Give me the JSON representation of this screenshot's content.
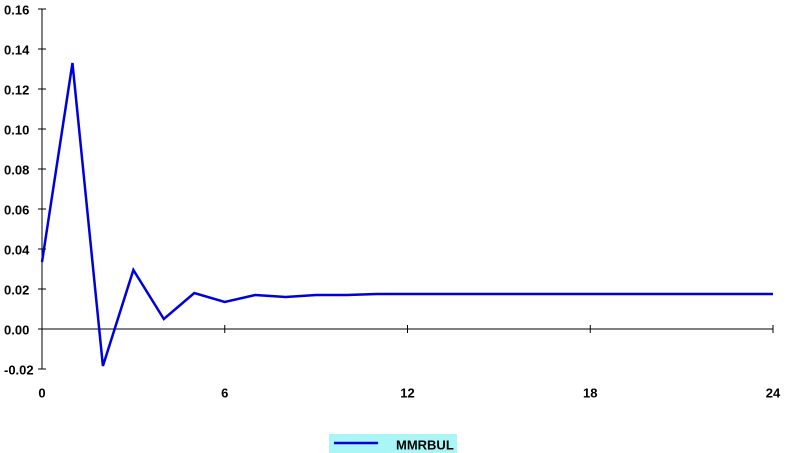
{
  "chart_data": {
    "type": "line",
    "x": [
      0,
      1,
      2,
      3,
      4,
      5,
      6,
      7,
      8,
      9,
      10,
      11,
      12,
      13,
      14,
      15,
      16,
      17,
      18,
      19,
      20,
      21,
      22,
      23,
      24
    ],
    "series": [
      {
        "name": "MMRBUL",
        "color": "#0000dd",
        "values": [
          0.0335,
          0.133,
          -0.0185,
          0.0295,
          0.005,
          0.018,
          0.0135,
          0.017,
          0.016,
          0.017,
          0.017,
          0.0175,
          0.0175,
          0.0175,
          0.0175,
          0.0175,
          0.0175,
          0.0175,
          0.0175,
          0.0175,
          0.0175,
          0.0175,
          0.0175,
          0.0175,
          0.0175
        ]
      }
    ],
    "xlim": [
      0,
      24
    ],
    "xticks": [
      0,
      6,
      12,
      18,
      24
    ],
    "ylim": [
      -0.02,
      0.16
    ],
    "yticks": [
      -0.02,
      {
        "value": 0,
        "label": "0.00"
      },
      0.02,
      0.04,
      0.06,
      0.08,
      {
        "value": 0.1,
        "label": "0.10"
      },
      0.12,
      0.14,
      0.16
    ],
    "zero_line": true,
    "legend": "bottom"
  }
}
